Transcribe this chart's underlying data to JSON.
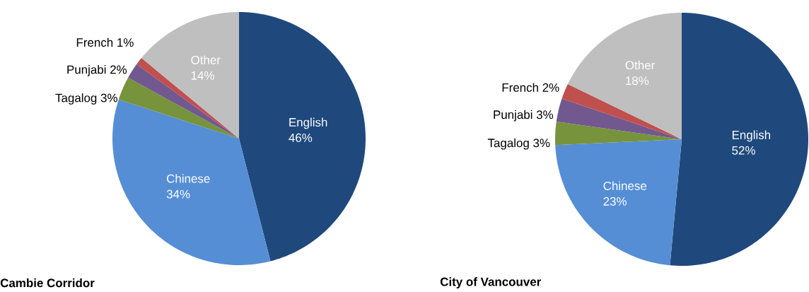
{
  "chart_data": [
    {
      "type": "pie",
      "title": "Cambie Corridor",
      "categories": [
        "English",
        "Chinese",
        "Tagalog",
        "Punjabi",
        "French",
        "Other"
      ],
      "values": [
        46,
        34,
        3,
        2,
        1,
        14
      ],
      "value_labels": [
        "46%",
        "34%",
        "3%",
        "2%",
        "1%",
        "14%"
      ],
      "colors": [
        "#1f497d",
        "#558ed5",
        "#77933c",
        "#71588f",
        "#c0504d",
        "#bfbfbf"
      ]
    },
    {
      "type": "pie",
      "title": "City of Vancouver",
      "categories": [
        "English",
        "Chinese",
        "Tagalog",
        "Punjabi",
        "French",
        "Other"
      ],
      "values": [
        52,
        23,
        3,
        3,
        2,
        18
      ],
      "value_labels": [
        "52%",
        "23%",
        "3%",
        "3%",
        "2%",
        "18%"
      ],
      "colors": [
        "#1f497d",
        "#558ed5",
        "#77933c",
        "#71588f",
        "#c0504d",
        "#bfbfbf"
      ]
    }
  ]
}
